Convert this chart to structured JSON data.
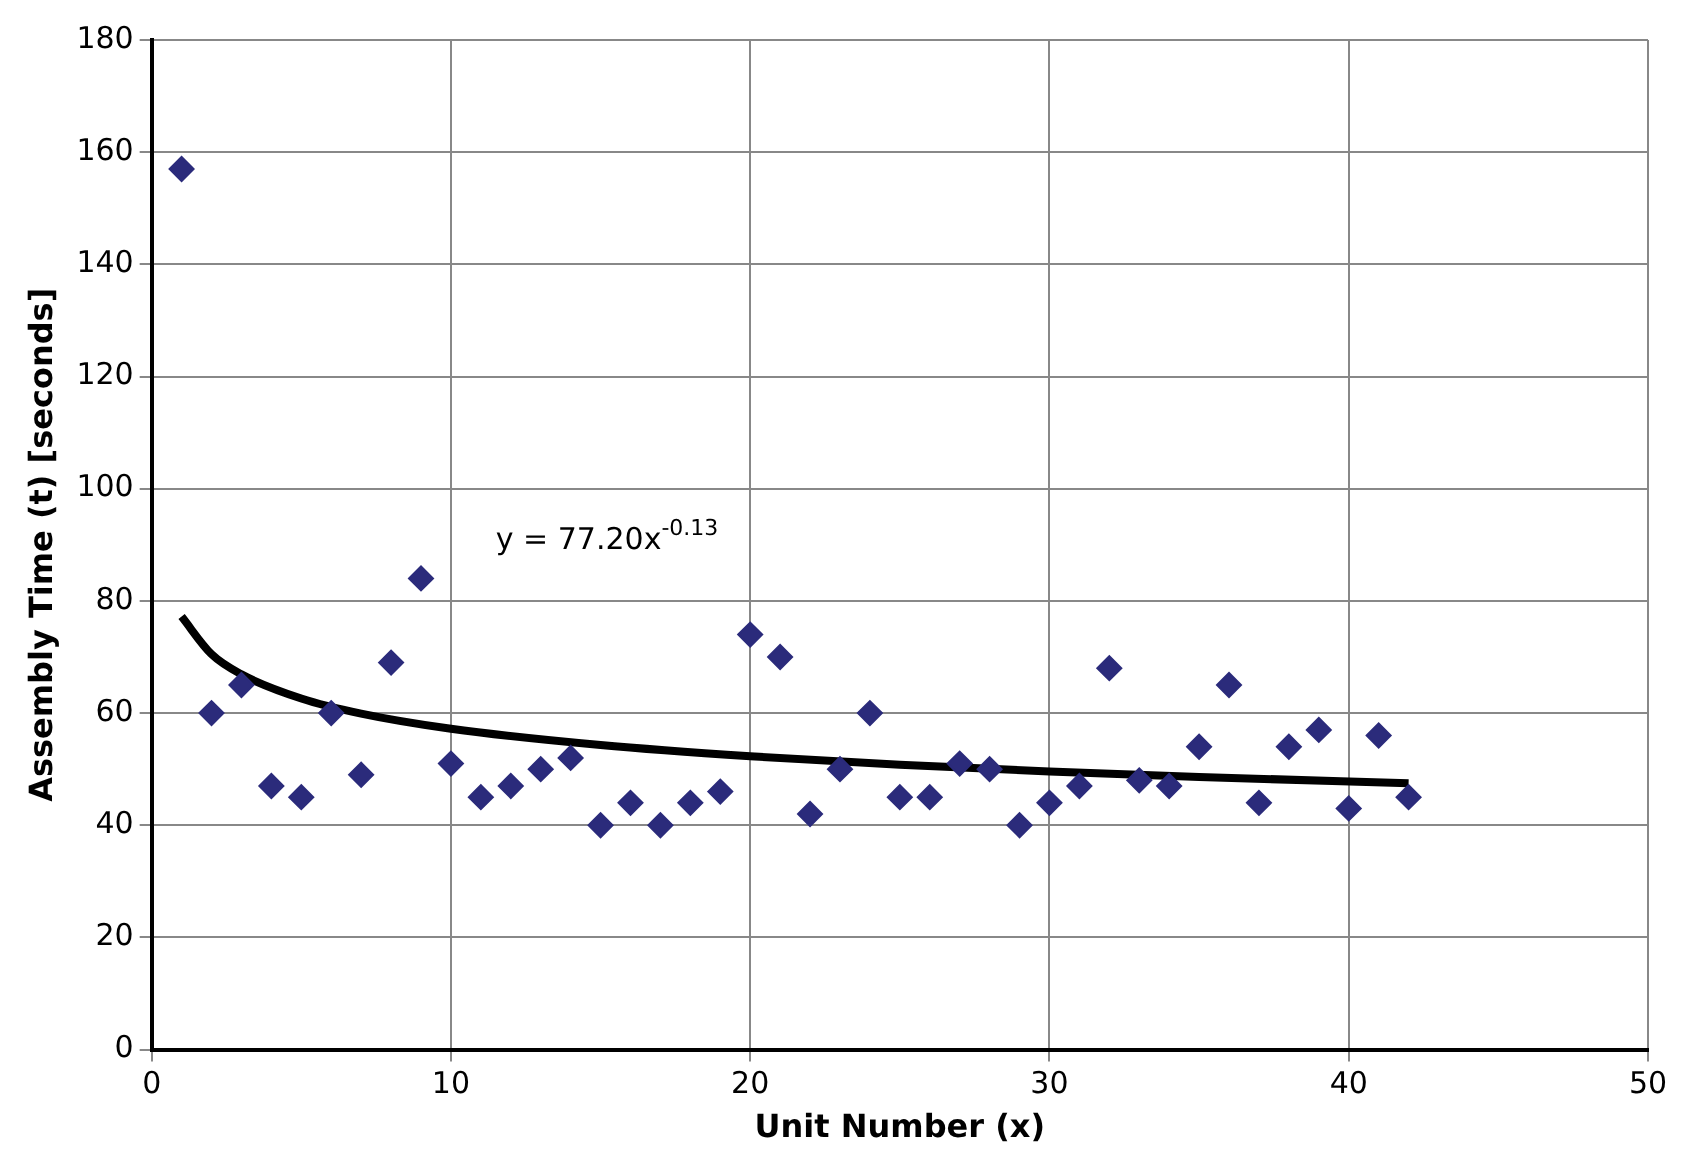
{
  "chart_data": {
    "type": "scatter",
    "xlabel": "Unit Number (x)",
    "ylabel": "Assembly Time (t) [seconds]",
    "xlim": [
      0,
      50
    ],
    "xticks": [
      0,
      10,
      20,
      30,
      40,
      50
    ],
    "ylim": [
      0,
      180
    ],
    "yticks": [
      0,
      20,
      40,
      60,
      80,
      100,
      120,
      140,
      160,
      180
    ],
    "grid": true,
    "legend": false,
    "marker": "diamond",
    "annotations": [
      "y = 77.20x$^{-0.13}$"
    ],
    "series": [
      {
        "color": "#2b2b7b",
        "x": [
          1,
          2,
          3,
          4,
          5,
          6,
          7,
          8,
          9,
          10,
          11,
          12,
          13,
          14,
          15,
          16,
          17,
          18,
          19,
          20,
          21,
          22,
          23,
          24,
          25,
          26,
          27,
          28,
          29,
          30,
          31,
          32,
          33,
          34,
          35,
          36,
          37,
          38,
          39,
          40,
          41,
          42
        ],
        "values": [
          157,
          60,
          65,
          47,
          45,
          60,
          49,
          69,
          84,
          51,
          45,
          47,
          50,
          52,
          40,
          44,
          40,
          44,
          46,
          74,
          70,
          42,
          50,
          60,
          45,
          45,
          51,
          50,
          40,
          44,
          47,
          68,
          48,
          47,
          54,
          65,
          44,
          54,
          57,
          43,
          56,
          45
        ]
      },
      {
        "type": "line",
        "color": "#000000",
        "marker": "none",
        "line_style": "solid",
        "x": [
          1,
          2,
          3,
          5,
          7,
          10,
          15,
          20,
          25,
          30,
          35,
          42
        ],
        "values": [
          77.2,
          70.5,
          66.9,
          62.6,
          59.9,
          57.2,
          54.3,
          52.3,
          50.8,
          49.6,
          48.6,
          47.5
        ]
      }
    ]
  }
}
